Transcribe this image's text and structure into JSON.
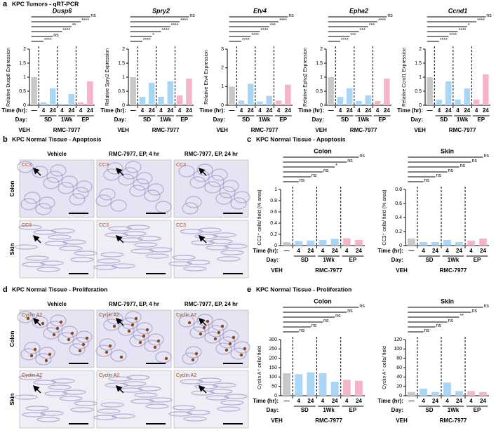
{
  "panels": {
    "a": {
      "letter": "a",
      "title": "KPC Tumors - qRT-PCR"
    },
    "b": {
      "letter": "b",
      "title": "KPC Normal Tissue - Apoptosis",
      "columns": [
        "Vehicle",
        "RMC-7977, EP, 4 hr",
        "RMC-7977, EP, 24 hr"
      ],
      "rows": [
        "Colon",
        "Skin"
      ],
      "stain": "CC3"
    },
    "c": {
      "letter": "c",
      "title": "KPC Normal Tissue - Apoptosis"
    },
    "d": {
      "letter": "d",
      "title": "KPC Normal Tissue - Proliferation",
      "columns": [
        "Vehicle",
        "RMC-7977, EP, 4 hr",
        "RMC-7977, EP, 24 hr"
      ],
      "rows": [
        "Colon",
        "Skin"
      ],
      "stain": "Cyclin A2"
    },
    "e": {
      "letter": "e",
      "title": "KPC Normal Tissue - Proliferation"
    }
  },
  "chart_data": [
    {
      "type": "bar",
      "title": "Dusp6",
      "y_label": "Relative Dusp6 Expression",
      "categories": [
        "—",
        "4",
        "24",
        "4",
        "24",
        "4",
        "24"
      ],
      "time_label": "Time (hr):",
      "day_label": "Day:",
      "days": [
        "SD",
        "1Wk",
        "EP"
      ],
      "groups": [
        "VEH",
        "RMC-7977"
      ],
      "values": [
        1,
        0.1,
        0.6,
        0.05,
        0.4,
        0.1,
        0.85
      ],
      "colors": [
        "#c8c8c8",
        "#a9d6f5",
        "#a9d6f5",
        "#a9d6f5",
        "#a9d6f5",
        "#f5b5c9",
        "#f5b5c9"
      ],
      "ylim": [
        0,
        2
      ],
      "yticks": [
        0,
        0.5,
        1,
        1.5,
        2
      ],
      "significance": [
        "ns",
        "****",
        "**",
        "****",
        "ns",
        "****"
      ]
    },
    {
      "type": "bar",
      "title": "Spry2",
      "y_label": "Relative Spry2 Expression",
      "categories": [
        "—",
        "4",
        "24",
        "4",
        "24",
        "4",
        "24"
      ],
      "time_label": "Time (hr):",
      "day_label": "Day:",
      "days": [
        "SD",
        "1Wk",
        "EP"
      ],
      "groups": [
        "VEH",
        "RMC-7977"
      ],
      "values": [
        1,
        0.3,
        0.8,
        0.3,
        0.85,
        0.35,
        0.95
      ],
      "colors": [
        "#c8c8c8",
        "#a9d6f5",
        "#a9d6f5",
        "#a9d6f5",
        "#a9d6f5",
        "#f5b5c9",
        "#f5b5c9"
      ],
      "ylim": [
        0,
        2
      ],
      "yticks": [
        0,
        0.5,
        1,
        1.5,
        2
      ],
      "significance": [
        "ns",
        "****",
        "****",
        "****",
        "*",
        "****"
      ]
    },
    {
      "type": "bar",
      "title": "Etv4",
      "y_label": "Relative Etv4 Expression",
      "categories": [
        "—",
        "4",
        "24",
        "4",
        "24",
        "4",
        "24"
      ],
      "time_label": "Time (hr):",
      "day_label": "Day:",
      "days": [
        "SD",
        "1Wk",
        "EP"
      ],
      "groups": [
        "VEH",
        "RMC-7977"
      ],
      "values": [
        1,
        0.25,
        1.15,
        0.2,
        0.5,
        0.25,
        1.1
      ],
      "colors": [
        "#c8c8c8",
        "#a9d6f5",
        "#a9d6f5",
        "#a9d6f5",
        "#a9d6f5",
        "#f5b5c9",
        "#f5b5c9"
      ],
      "ylim": [
        0,
        3
      ],
      "yticks": [
        0,
        1,
        2,
        3
      ],
      "significance": [
        "ns",
        "****",
        "***",
        "****",
        "****",
        "****"
      ]
    },
    {
      "type": "bar",
      "title": "Epha2",
      "y_label": "Relative Epha2 Expression",
      "categories": [
        "—",
        "4",
        "24",
        "4",
        "24",
        "4",
        "24"
      ],
      "time_label": "Time (hr):",
      "day_label": "Day:",
      "days": [
        "SD",
        "1Wk",
        "EP"
      ],
      "groups": [
        "VEH",
        "RMC-7977"
      ],
      "values": [
        1,
        0.3,
        0.6,
        0.15,
        0.35,
        0.15,
        0.95
      ],
      "colors": [
        "#c8c8c8",
        "#a9d6f5",
        "#a9d6f5",
        "#a9d6f5",
        "#a9d6f5",
        "#f5b5c9",
        "#f5b5c9"
      ],
      "ylim": [
        0,
        2
      ],
      "yticks": [
        0,
        0.5,
        1,
        1.5,
        2
      ],
      "significance": [
        "ns",
        "****",
        "***",
        "***",
        "***",
        "****"
      ]
    },
    {
      "type": "bar",
      "title": "Ccnd1",
      "y_label": "Relative Ccnd1 Expression",
      "categories": [
        "—",
        "4",
        "24",
        "4",
        "24",
        "4",
        "24"
      ],
      "time_label": "Time (hr):",
      "day_label": "Day:",
      "days": [
        "SD",
        "1Wk",
        "EP"
      ],
      "groups": [
        "VEH",
        "RMC-7977"
      ],
      "values": [
        1,
        0.2,
        0.85,
        0.2,
        0.6,
        0.2,
        1.1
      ],
      "colors": [
        "#c8c8c8",
        "#a9d6f5",
        "#a9d6f5",
        "#a9d6f5",
        "#a9d6f5",
        "#f5b5c9",
        "#f5b5c9"
      ],
      "ylim": [
        0,
        2
      ],
      "yticks": [
        0,
        0.5,
        1,
        1.5,
        2
      ],
      "significance": [
        "ns",
        "****",
        "*",
        "****",
        "****",
        "****"
      ]
    },
    {
      "type": "bar",
      "title": "Colon",
      "y_label": "CC3⁺ cells/ field (% area)",
      "categories": [
        "—",
        "4",
        "24",
        "4",
        "24",
        "4",
        "24"
      ],
      "time_label": "Time (hr):",
      "day_label": "Day:",
      "days": [
        "SD",
        "1Wk",
        "EP"
      ],
      "groups": [
        "VEH",
        "RMC-7977"
      ],
      "values": [
        0.06,
        0.08,
        0.09,
        0.1,
        0.12,
        0.13,
        0.1
      ],
      "colors": [
        "#c8c8c8",
        "#a9d6f5",
        "#a9d6f5",
        "#a9d6f5",
        "#a9d6f5",
        "#f5b5c9",
        "#f5b5c9"
      ],
      "ylim": [
        0,
        1
      ],
      "yticks": [
        0,
        0.2,
        0.4,
        0.6,
        0.8,
        1
      ],
      "significance": [
        "ns",
        "ns",
        "*",
        "ns",
        "ns",
        "ns"
      ]
    },
    {
      "type": "bar",
      "title": "Skin",
      "y_label": "CC3⁺ cells/ field (% area)",
      "categories": [
        "—",
        "4",
        "24",
        "4",
        "24",
        "4",
        "24"
      ],
      "time_label": "Time (hr):",
      "day_label": "Day:",
      "days": [
        "SD",
        "1Wk",
        "EP"
      ],
      "groups": [
        "VEH",
        "RMC-7977"
      ],
      "values": [
        0.1,
        0.05,
        0.05,
        0.08,
        0.05,
        0.07,
        0.1
      ],
      "colors": [
        "#c8c8c8",
        "#a9d6f5",
        "#a9d6f5",
        "#a9d6f5",
        "#a9d6f5",
        "#f5b5c9",
        "#f5b5c9"
      ],
      "ylim": [
        0,
        0.8
      ],
      "yticks": [
        0,
        0.2,
        0.4,
        0.6,
        0.8
      ],
      "significance": [
        "ns",
        "ns",
        "ns",
        "ns",
        "ns",
        "ns"
      ]
    },
    {
      "type": "bar",
      "title": "Colon",
      "y_label": "Cyclin A⁺ cells/ field",
      "categories": [
        "—",
        "4",
        "24",
        "4",
        "24",
        "4",
        "24"
      ],
      "time_label": "Time (hr):",
      "day_label": "Day:",
      "days": [
        "SD",
        "1Wk",
        "EP"
      ],
      "groups": [
        "VEH",
        "RMC-7977"
      ],
      "values": [
        120,
        115,
        125,
        120,
        75,
        85,
        80
      ],
      "colors": [
        "#c8c8c8",
        "#a9d6f5",
        "#a9d6f5",
        "#a9d6f5",
        "#a9d6f5",
        "#f5b5c9",
        "#f5b5c9"
      ],
      "ylim": [
        0,
        300
      ],
      "yticks": [
        0,
        50,
        100,
        150,
        200,
        250,
        300
      ],
      "significance": [
        "ns",
        "ns",
        "ns",
        "ns",
        "ns",
        "ns"
      ]
    },
    {
      "type": "bar",
      "title": "Skin",
      "y_label": "Cyclin A⁺ cells/ field",
      "categories": [
        "—",
        "4",
        "24",
        "4",
        "24",
        "4",
        "24"
      ],
      "time_label": "Time (hr):",
      "day_label": "Day:",
      "days": [
        "SD",
        "1Wk",
        "EP"
      ],
      "groups": [
        "VEH",
        "RMC-7977"
      ],
      "values": [
        8,
        15,
        8,
        28,
        10,
        10,
        8
      ],
      "colors": [
        "#c8c8c8",
        "#a9d6f5",
        "#a9d6f5",
        "#a9d6f5",
        "#a9d6f5",
        "#f5b5c9",
        "#f5b5c9"
      ],
      "ylim": [
        0,
        120
      ],
      "yticks": [
        0,
        20,
        40,
        60,
        80,
        100,
        120
      ],
      "significance": [
        "ns",
        "ns",
        "**",
        "ns",
        "ns",
        "ns"
      ]
    }
  ]
}
